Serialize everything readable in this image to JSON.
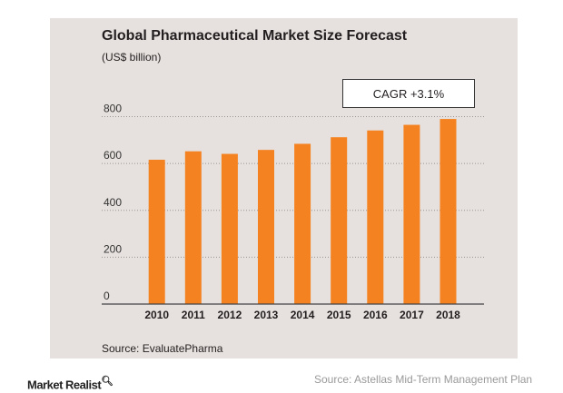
{
  "chart_data": {
    "type": "bar",
    "title": "Global Pharmaceutical Market Size Forecast",
    "subtitle": "(US$ billion)",
    "annotation": "CAGR +3.1%",
    "categories": [
      "2010",
      "2011",
      "2012",
      "2013",
      "2014",
      "2015",
      "2016",
      "2017",
      "2018"
    ],
    "values": [
      616,
      652,
      641,
      658,
      684,
      712,
      741,
      765,
      790
    ],
    "ylim": [
      0,
      800
    ],
    "yticks": [
      0,
      200,
      400,
      600,
      800
    ],
    "grid": "dotted horizontal",
    "bar_color": "#f58220",
    "source": "Source: EvaluatePharma"
  },
  "footer": {
    "logo": "Market Realist",
    "source": "Source:  Astellas Mid-Term  Management  Plan"
  }
}
